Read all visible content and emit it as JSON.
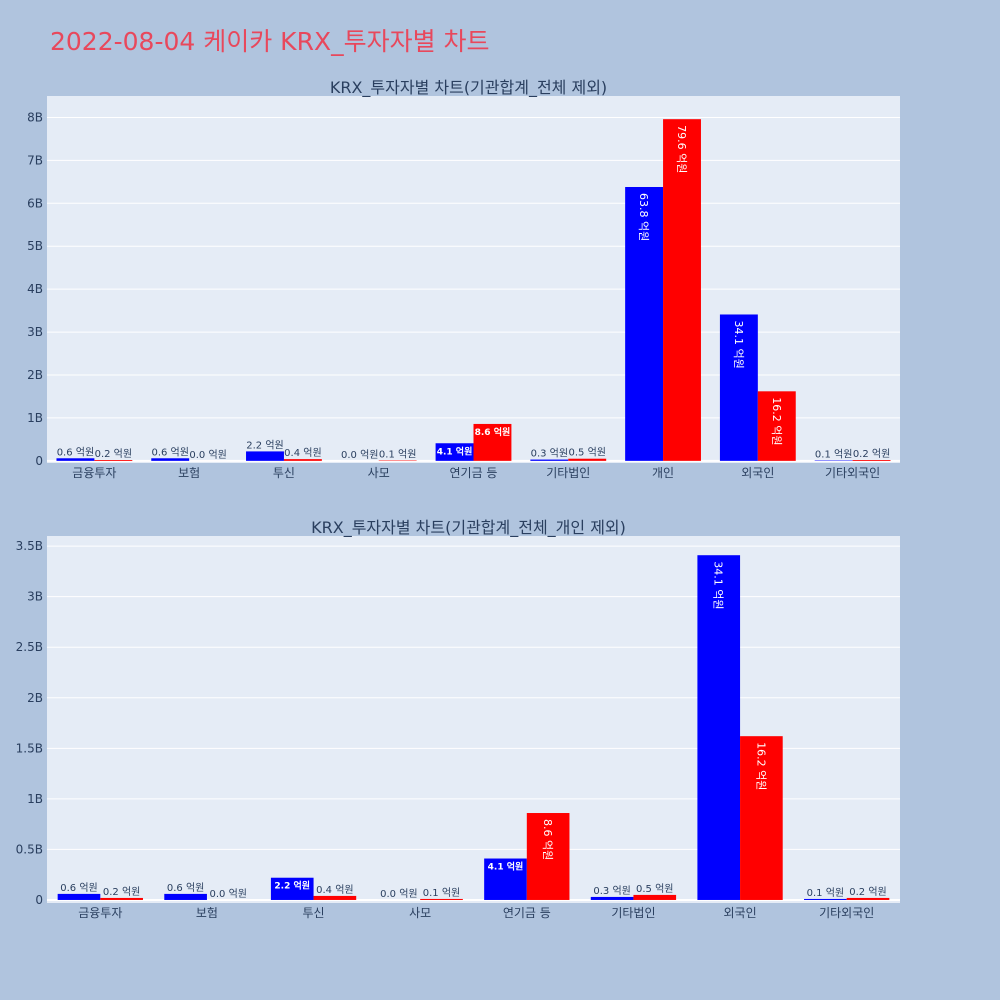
{
  "page": {
    "title": "2022-08-04 케이카 KRX_투자자별 차트"
  },
  "colors": {
    "buy": "#0000ff",
    "sell": "#ff0000",
    "plot_bg": "#e5ecf6",
    "page_bg": "#b0c4de",
    "title": "#e8485c"
  },
  "chart_data": [
    {
      "type": "bar",
      "title": "KRX_투자자별 차트(기관합계_전체 제외)",
      "categories": [
        "금융투자",
        "보험",
        "투신",
        "사모",
        "연기금 등",
        "기타법인",
        "개인",
        "외국인",
        "기타외국인"
      ],
      "series": [
        {
          "color": "#0000ff",
          "values": [
            0.06,
            0.06,
            0.22,
            0.0,
            0.41,
            0.03,
            6.38,
            3.41,
            0.01
          ],
          "labels": [
            "0.6 억원",
            "0.6 억원",
            "2.2 억원",
            "0.0 억원",
            "4.1 억원",
            "0.3 억원",
            "63.8 억원",
            "34.1 억원",
            "0.1 억원"
          ]
        },
        {
          "color": "#ff0000",
          "values": [
            0.02,
            0.0,
            0.04,
            0.01,
            0.86,
            0.05,
            7.96,
            1.62,
            0.02
          ],
          "labels": [
            "0.2 억원",
            "0.0 억원",
            "0.4 억원",
            "0.1 억원",
            "8.6 억원",
            "0.5 억원",
            "79.6 억원",
            "16.2 억원",
            "0.2 억원"
          ]
        }
      ],
      "ylim": [
        -0.05,
        8.5
      ],
      "yticks": [
        0,
        1,
        2,
        3,
        4,
        5,
        6,
        7,
        8
      ],
      "ytick_labels": [
        "0",
        "1B",
        "2B",
        "3B",
        "4B",
        "5B",
        "6B",
        "7B",
        "8B"
      ],
      "grid": true
    },
    {
      "type": "bar",
      "title": "KRX_투자자별 차트(기관합계_전체_개인 제외)",
      "categories": [
        "금융투자",
        "보험",
        "투신",
        "사모",
        "연기금 등",
        "기타법인",
        "외국인",
        "기타외국인"
      ],
      "series": [
        {
          "color": "#0000ff",
          "values": [
            0.06,
            0.06,
            0.22,
            0.0,
            0.41,
            0.03,
            3.41,
            0.01
          ],
          "labels": [
            "0.6 억원",
            "0.6 억원",
            "2.2 억원",
            "0.0 억원",
            "4.1 억원",
            "0.3 억원",
            "34.1 억원",
            "0.1 억원"
          ]
        },
        {
          "color": "#ff0000",
          "values": [
            0.02,
            0.0,
            0.04,
            0.01,
            0.86,
            0.05,
            1.62,
            0.02
          ],
          "labels": [
            "0.2 억원",
            "0.0 억원",
            "0.4 억원",
            "0.1 억원",
            "8.6 억원",
            "0.5 억원",
            "16.2 억원",
            "0.2 억원"
          ]
        }
      ],
      "ylim": [
        -0.03,
        3.6
      ],
      "yticks": [
        0,
        0.5,
        1,
        1.5,
        2,
        2.5,
        3,
        3.5
      ],
      "ytick_labels": [
        "0",
        "0.5B",
        "1B",
        "1.5B",
        "2B",
        "2.5B",
        "3B",
        "3.5B"
      ],
      "grid": true
    }
  ]
}
